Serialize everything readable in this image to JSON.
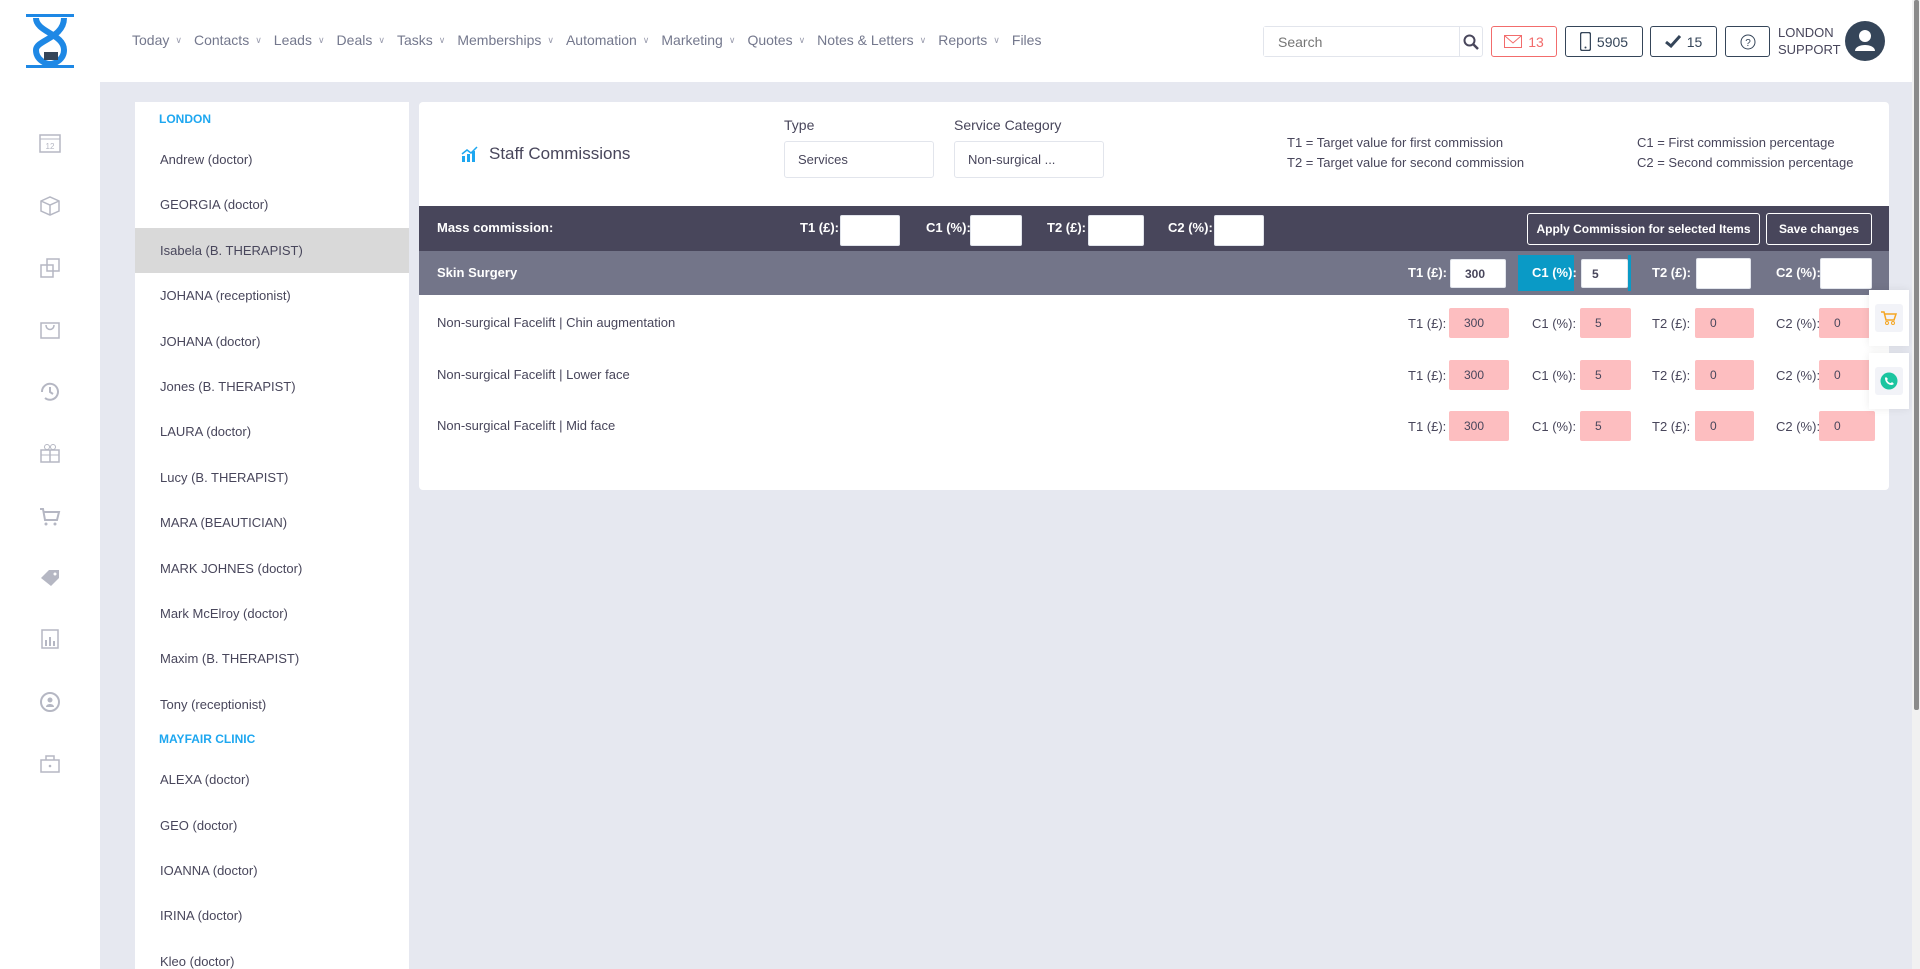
{
  "nav": [
    "Today",
    "Contacts",
    "Leads",
    "Deals",
    "Tasks",
    "Memberships",
    "Automation",
    "Marketing",
    "Quotes",
    "Notes & Letters",
    "Reports",
    "Files"
  ],
  "nav_has_dropdown": [
    true,
    true,
    true,
    true,
    true,
    true,
    true,
    true,
    true,
    true,
    true,
    false
  ],
  "search": {
    "placeholder": "Search"
  },
  "badges": {
    "mail": "13",
    "phone": "5905",
    "tasks": "15"
  },
  "user": {
    "line1": "LONDON",
    "line2": "SUPPORT"
  },
  "rail_icons": [
    "calendar-icon",
    "box-icon",
    "copy-icon",
    "basket-icon",
    "history-icon",
    "gift-icon",
    "cart-icon",
    "tag-icon",
    "report-icon",
    "user-sync-icon",
    "lock-icon"
  ],
  "staff": {
    "groups": [
      {
        "name": "LONDON",
        "items": [
          "Andrew (doctor)",
          "GEORGIA (doctor)",
          "Isabela (B. THERAPIST)",
          "JOHANA (receptionist)",
          "JOHANA (doctor)",
          "Jones (B. THERAPIST)",
          "LAURA (doctor)",
          "Lucy (B. THERAPIST)",
          "MARA (BEAUTICIAN)",
          "MARK JOHNES (doctor)",
          "Mark McElroy (doctor)",
          "Maxim (B. THERAPIST)",
          "Tony (receptionist)"
        ]
      },
      {
        "name": "MAYFAIR CLINIC",
        "items": [
          "ALEXA (doctor)",
          "GEO (doctor)",
          "IOANNA (doctor)",
          "IRINA (doctor)",
          "Kleo (doctor)"
        ]
      }
    ],
    "selected": "Isabela (B. THERAPIST)"
  },
  "panel": {
    "title": "Staff Commissions",
    "type_label": "Type",
    "type_value": "Services",
    "category_label": "Service Category",
    "category_value": "Non-surgical ...",
    "legend": {
      "t1": "T1 = Target value for first commission",
      "t2": "T2 = Target value for second commission",
      "c1": "C1 = First commission percentage",
      "c2": "C2 = Second commission percentage"
    },
    "labels": {
      "t1": "T1 (£):",
      "c1": "C1 (%):",
      "t2": "T2 (£):",
      "c2": "C2 (%):"
    },
    "mass": {
      "label": "Mass commission:",
      "t1": "",
      "c1": "",
      "t2": "",
      "c2": "",
      "apply": "Apply Commission for selected Items",
      "save": "Save changes"
    },
    "category": {
      "name": "Skin Surgery",
      "t1": "300",
      "c1": "5",
      "t2": "",
      "c2": ""
    },
    "rows": [
      {
        "name": "Non-surgical Facelift | Chin augmentation",
        "t1": "300",
        "c1": "5",
        "t2": "0",
        "c2": "0"
      },
      {
        "name": "Non-surgical Facelift | Lower face",
        "t1": "300",
        "c1": "5",
        "t2": "0",
        "c2": "0"
      },
      {
        "name": "Non-surgical Facelift | Mid face",
        "t1": "300",
        "c1": "5",
        "t2": "0",
        "c2": "0"
      }
    ]
  },
  "colors": {
    "accent": "#1ea7f0",
    "dark_bar": "#48465b",
    "category_bar": "#737589",
    "pink_input": "#fdbec0",
    "focus": "#0a9ac6"
  }
}
